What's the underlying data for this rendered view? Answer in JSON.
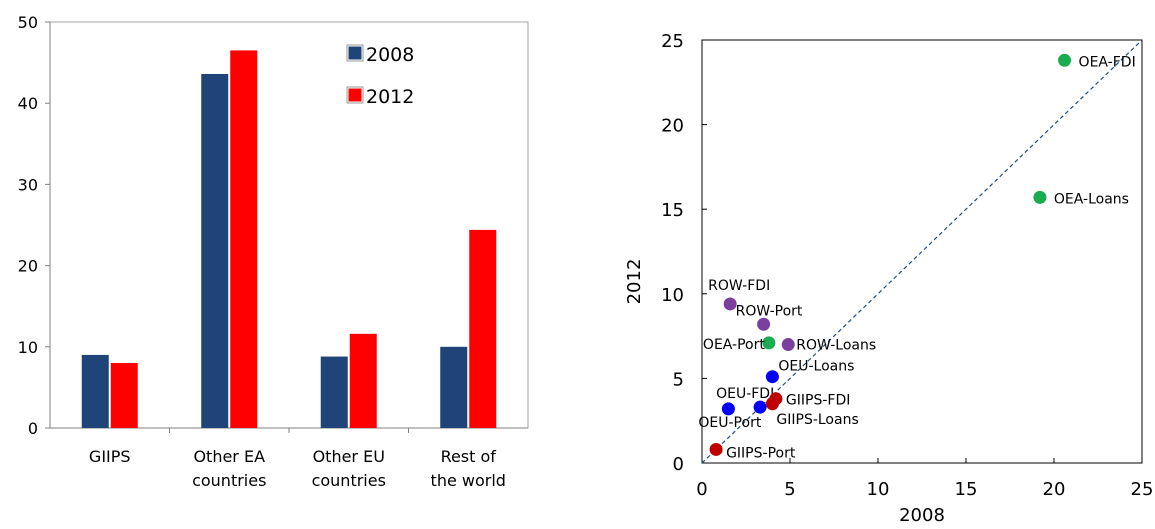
{
  "chart_data": [
    {
      "type": "bar",
      "categories": [
        "GIIPS",
        "Other EA countries",
        "Other EU countries",
        "Rest of the world"
      ],
      "series": [
        {
          "name": "2008",
          "values": [
            9.0,
            43.6,
            8.8,
            10.0
          ],
          "color": "#1f4478"
        },
        {
          "name": "2012",
          "values": [
            8.0,
            46.5,
            11.6,
            24.4
          ],
          "color": "#ff0000"
        }
      ],
      "ylim": [
        0,
        50
      ],
      "yticks": [
        0,
        10,
        20,
        30,
        40,
        50
      ],
      "legend": "top-right inside",
      "grid": false
    },
    {
      "type": "scatter",
      "xlabel": "2008",
      "ylabel": "2012",
      "xlim": [
        0,
        25
      ],
      "ylim": [
        0,
        25
      ],
      "xticks": [
        0,
        5,
        10,
        15,
        20,
        25
      ],
      "yticks": [
        0,
        5,
        10,
        15,
        20,
        25
      ],
      "reference_line": "y = x (dashed)",
      "grid": false,
      "points": [
        {
          "label": "OEA-FDI",
          "x": 20.6,
          "y": 23.8,
          "color": "#1aad4f"
        },
        {
          "label": "OEA-Loans",
          "x": 19.2,
          "y": 15.7,
          "color": "#1aad4f"
        },
        {
          "label": "OEA-Port",
          "x": 3.8,
          "y": 7.1,
          "color": "#1aad4f"
        },
        {
          "label": "ROW-FDI",
          "x": 1.6,
          "y": 9.4,
          "color": "#7b3f9e"
        },
        {
          "label": "ROW-Port",
          "x": 3.5,
          "y": 8.2,
          "color": "#7b3f9e"
        },
        {
          "label": "ROW-Loans",
          "x": 4.9,
          "y": 7.0,
          "color": "#7b3f9e"
        },
        {
          "label": "OEU-Loans",
          "x": 4.0,
          "y": 5.1,
          "color": "#0000ff"
        },
        {
          "label": "OEU-FDI",
          "x": 3.3,
          "y": 3.3,
          "color": "#0000ff"
        },
        {
          "label": "OEU-Port",
          "x": 1.5,
          "y": 3.2,
          "color": "#0000ff"
        },
        {
          "label": "GIIPS-FDI",
          "x": 4.2,
          "y": 3.8,
          "color": "#c00000"
        },
        {
          "label": "GIIPS-Loans",
          "x": 4.0,
          "y": 3.5,
          "color": "#c00000"
        },
        {
          "label": "GIIPS-Port",
          "x": 0.8,
          "y": 0.8,
          "color": "#c00000"
        }
      ]
    }
  ]
}
